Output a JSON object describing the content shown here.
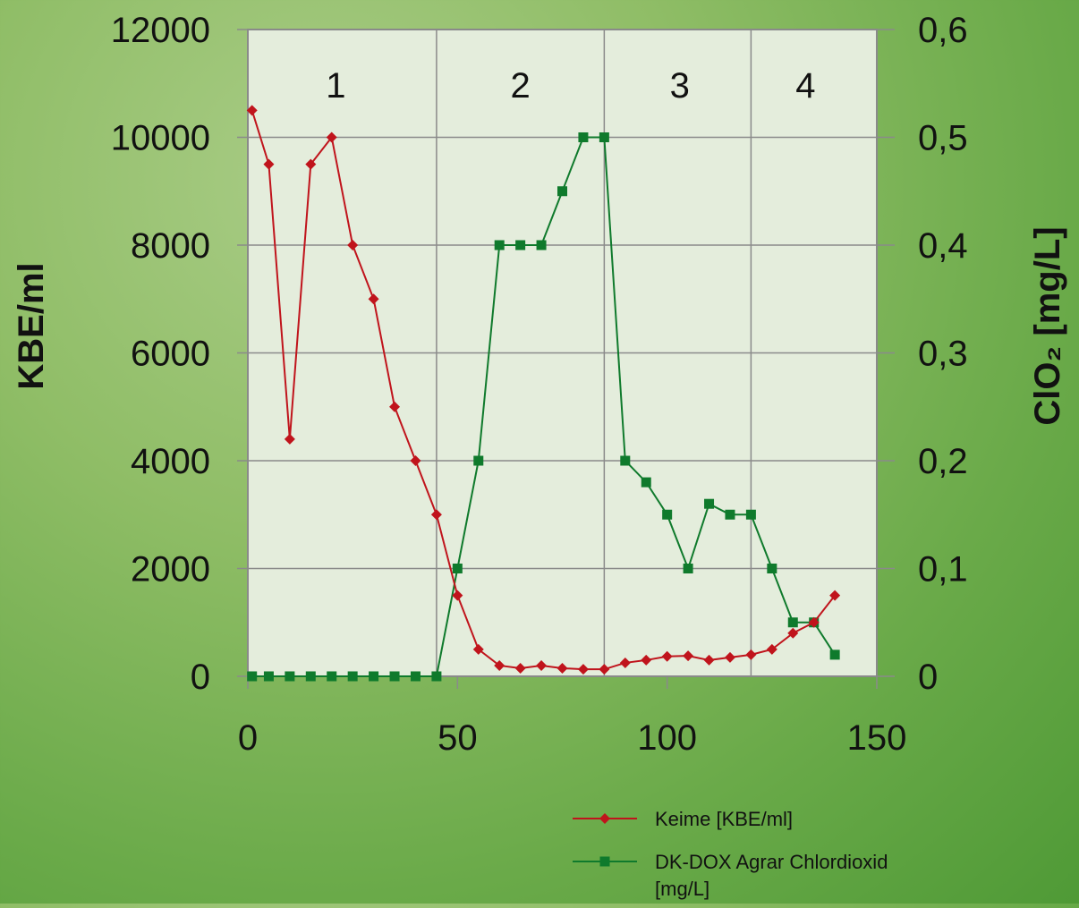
{
  "chart_data": {
    "type": "line",
    "title": "",
    "xlabel": "",
    "ylabel": "KBE/ml",
    "y2label": "ClO₂ [mg/L]",
    "xlim": [
      0,
      150
    ],
    "ylim": [
      0,
      12000
    ],
    "y2lim": [
      0,
      0.6
    ],
    "x_ticks": [
      0,
      50,
      100,
      150
    ],
    "x_tick_labels": [
      "0",
      "50",
      "100",
      "150"
    ],
    "y_ticks": [
      0,
      2000,
      4000,
      6000,
      8000,
      10000,
      12000
    ],
    "y_tick_labels": [
      "0",
      "2000",
      "4000",
      "6000",
      "8000",
      "10000",
      "12000"
    ],
    "y2_ticks": [
      0,
      0.1,
      0.2,
      0.3,
      0.4,
      0.5,
      0.6
    ],
    "y2_tick_labels": [
      "0",
      "0,1",
      "0,2",
      "0,3",
      "0,4",
      "0,5",
      "0,6"
    ],
    "grid": true,
    "vertical_dividers": [
      45,
      85,
      120
    ],
    "regions": [
      {
        "label": "1",
        "x": 21
      },
      {
        "label": "2",
        "x": 65
      },
      {
        "label": "3",
        "x": 103
      },
      {
        "label": "4",
        "x": 133
      }
    ],
    "legend_position": "bottom-right",
    "series": [
      {
        "name": "Keime [KBE/ml]",
        "axis": "left",
        "color": "#c0141c",
        "marker": "diamond",
        "points": [
          [
            1,
            10500
          ],
          [
            5,
            9500
          ],
          [
            10,
            4400
          ],
          [
            15,
            9500
          ],
          [
            20,
            10000
          ],
          [
            25,
            8000
          ],
          [
            30,
            7000
          ],
          [
            35,
            5000
          ],
          [
            40,
            4000
          ],
          [
            45,
            3000
          ],
          [
            50,
            1500
          ],
          [
            55,
            500
          ],
          [
            60,
            200
          ],
          [
            65,
            150
          ],
          [
            70,
            200
          ],
          [
            75,
            150
          ],
          [
            80,
            130
          ],
          [
            85,
            130
          ],
          [
            90,
            250
          ],
          [
            95,
            300
          ],
          [
            100,
            370
          ],
          [
            105,
            380
          ],
          [
            110,
            300
          ],
          [
            115,
            350
          ],
          [
            120,
            400
          ],
          [
            125,
            500
          ],
          [
            130,
            800
          ],
          [
            135,
            1000
          ],
          [
            140,
            1500
          ]
        ]
      },
      {
        "name": "DK-DOX Agrar Chlordioxid [mg/L]",
        "name_lines": [
          "DK-DOX Agrar Chlordioxid",
          "[mg/L]"
        ],
        "axis": "right",
        "color": "#0f7a2c",
        "marker": "square",
        "points": [
          [
            1,
            0
          ],
          [
            5,
            0
          ],
          [
            10,
            0
          ],
          [
            15,
            0
          ],
          [
            20,
            0
          ],
          [
            25,
            0
          ],
          [
            30,
            0
          ],
          [
            35,
            0
          ],
          [
            40,
            0
          ],
          [
            45,
            0
          ],
          [
            50,
            0.1
          ],
          [
            55,
            0.2
          ],
          [
            60,
            0.4
          ],
          [
            65,
            0.4
          ],
          [
            70,
            0.4
          ],
          [
            75,
            0.45
          ],
          [
            80,
            0.5
          ],
          [
            85,
            0.5
          ],
          [
            90,
            0.2
          ],
          [
            95,
            0.18
          ],
          [
            100,
            0.15
          ],
          [
            105,
            0.1
          ],
          [
            110,
            0.16
          ],
          [
            115,
            0.15
          ],
          [
            120,
            0.15
          ],
          [
            125,
            0.1
          ],
          [
            130,
            0.05
          ],
          [
            135,
            0.05
          ],
          [
            140,
            0.02
          ]
        ]
      }
    ]
  }
}
